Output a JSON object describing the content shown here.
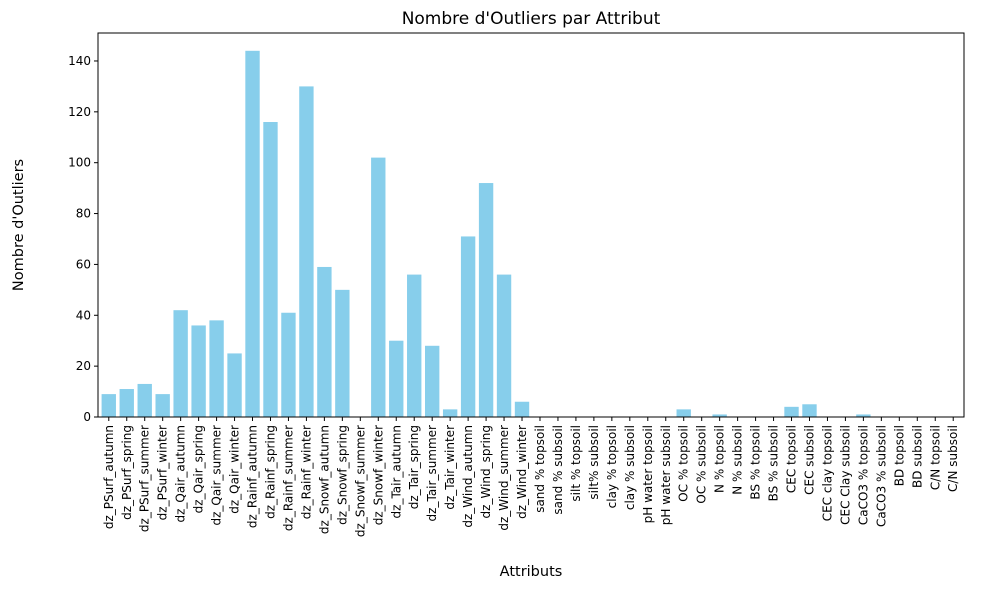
{
  "chart_data": {
    "type": "bar",
    "title": "Nombre d'Outliers par Attribut",
    "xlabel": "Attributs",
    "ylabel": "Nombre d'Outliers",
    "ylim": [
      0,
      151
    ],
    "yticks": [
      0,
      20,
      40,
      60,
      80,
      100,
      120,
      140
    ],
    "bar_color": "#87ceeb",
    "grid": false,
    "legend": "none",
    "categories": [
      "dz_PSurf_autumn",
      "dz_PSurf_spring",
      "dz_PSurf_summer",
      "dz_PSurf_winter",
      "dz_Qair_autumn",
      "dz_Qair_spring",
      "dz_Qair_summer",
      "dz_Qair_winter",
      "dz_Rainf_autumn",
      "dz_Rainf_spring",
      "dz_Rainf_summer",
      "dz_Rainf_winter",
      "dz_Snowf_autumn",
      "dz_Snowf_spring",
      "dz_Snowf_summer",
      "dz_Snowf_winter",
      "dz_Tair_autumn",
      "dz_Tair_spring",
      "dz_Tair_summer",
      "dz_Tair_winter",
      "dz_Wind_autumn",
      "dz_Wind_spring",
      "dz_Wind_summer",
      "dz_Wind_winter",
      "sand % topsoil",
      "sand % subsoil",
      "silt % topsoil",
      "silt% subsoil",
      "clay % topsoil",
      "clay % subsoil",
      "pH water topsoil",
      "pH water subsoil",
      "OC % topsoil",
      "OC % subsoil",
      "N % topsoil",
      "N % subsoil",
      "BS % topsoil",
      "BS % subsoil",
      "CEC topsoil",
      "CEC subsoil",
      "CEC clay topsoil",
      "CEC Clay subsoil",
      "CaCO3 % topsoil",
      "CaCO3 % subsoil",
      "BD topsoil",
      "BD subsoil",
      "C/N topsoil",
      "C/N subsoil"
    ],
    "values": [
      9,
      11,
      13,
      9,
      42,
      36,
      38,
      25,
      144,
      116,
      41,
      130,
      59,
      50,
      0,
      102,
      30,
      56,
      28,
      3,
      71,
      92,
      56,
      6,
      0,
      0,
      0,
      0,
      0,
      0,
      0,
      0,
      3,
      0,
      1,
      0,
      0,
      0,
      4,
      5,
      0,
      0,
      1,
      0,
      0,
      0,
      0,
      0
    ]
  }
}
